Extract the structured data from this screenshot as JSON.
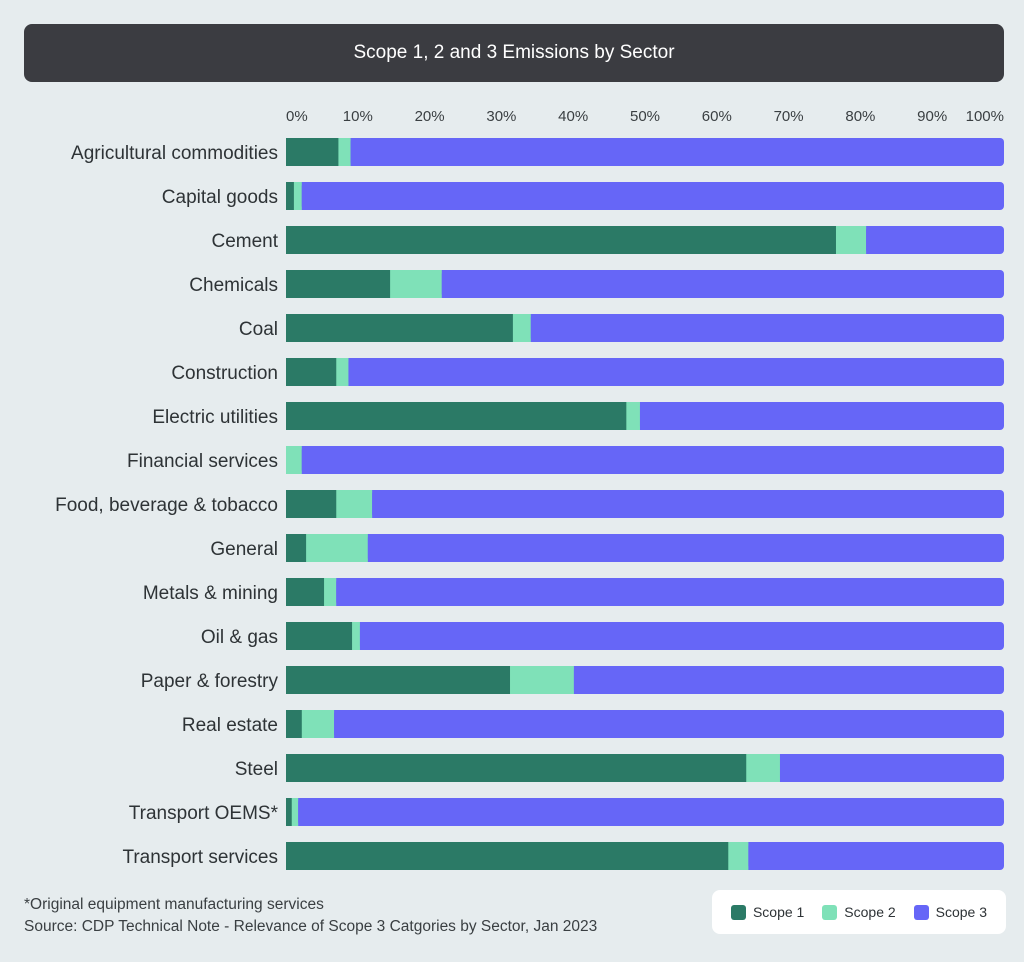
{
  "chart_data": {
    "type": "bar",
    "orientation": "horizontal",
    "stacked": true,
    "title": "Scope 1, 2 and 3 Emissions by Sector",
    "xlim": [
      0,
      100
    ],
    "x_ticks": [
      "0%",
      "10%",
      "20%",
      "30%",
      "40%",
      "50%",
      "60%",
      "70%",
      "80%",
      "90%",
      "100%"
    ],
    "x_axis_position": "top",
    "legend_position": "bottom-right",
    "categories": [
      "Agricultural commodities",
      "Capital goods",
      "Cement",
      "Chemicals",
      "Coal",
      "Construction",
      "Electric utilities",
      "Financial services",
      "Food, beverage & tobacco",
      "General",
      "Metals & mining",
      "Oil & gas",
      "Paper & forestry",
      "Real estate",
      "Steel",
      "Transport OEMS*",
      "Transport services"
    ],
    "series": [
      {
        "name": "Scope 1",
        "color": "#2b7a66",
        "values": [
          7.3,
          1.1,
          76.6,
          14.5,
          31.6,
          7.0,
          47.4,
          0,
          7.0,
          2.8,
          5.3,
          9.2,
          31.2,
          2.2,
          64.1,
          0.8,
          61.6
        ]
      },
      {
        "name": "Scope 2",
        "color": "#7fe1b8",
        "values": [
          1.7,
          1.1,
          4.2,
          7.2,
          2.5,
          1.7,
          1.9,
          2.2,
          5.0,
          8.6,
          1.7,
          1.1,
          8.9,
          4.5,
          4.7,
          0.9,
          2.8
        ]
      },
      {
        "name": "Scope 3",
        "color": "#6666f7",
        "values": [
          91.0,
          97.8,
          19.2,
          78.3,
          65.9,
          91.3,
          50.7,
          97.8,
          88.0,
          88.6,
          93.0,
          89.7,
          59.9,
          93.3,
          31.2,
          98.3,
          35.6
        ]
      }
    ]
  },
  "footnote": {
    "note": "*Original equipment manufacturing services",
    "source": "Source: CDP Technical Note - Relevance of Scope 3 Catgories by Sector, Jan 2023"
  }
}
